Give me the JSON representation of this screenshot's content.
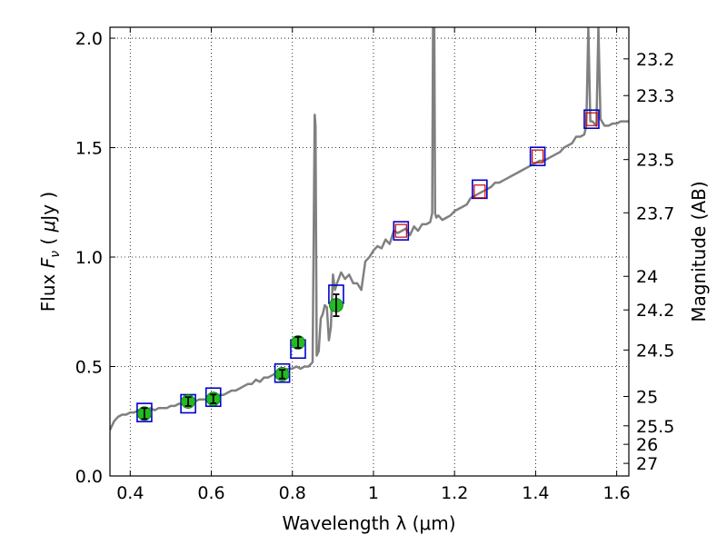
{
  "chart_data": {
    "type": "scatter",
    "xlabel": "Wavelength  λ (μm)",
    "ylabel_parts": [
      "Flux  ",
      "F",
      "ν",
      "  ( ",
      "μ",
      "Jy )"
    ],
    "y2label": "Magnitude (AB)",
    "xlim": [
      0.35,
      1.63
    ],
    "ylim": [
      0.0,
      2.05
    ],
    "grid": true,
    "x_ticks": [
      {
        "value": 0.4,
        "label": "0.4"
      },
      {
        "value": 0.6,
        "label": "0.6"
      },
      {
        "value": 0.8,
        "label": "0.8"
      },
      {
        "value": 1.0,
        "label": "1"
      },
      {
        "value": 1.2,
        "label": "1.2"
      },
      {
        "value": 1.4,
        "label": "1.4"
      },
      {
        "value": 1.6,
        "label": "1.6"
      }
    ],
    "y_ticks": [
      {
        "value": 0.0,
        "label": "0.0"
      },
      {
        "value": 0.5,
        "label": "0.5"
      },
      {
        "value": 1.0,
        "label": "1.0"
      },
      {
        "value": 1.5,
        "label": "1.5"
      },
      {
        "value": 2.0,
        "label": "2.0"
      }
    ],
    "mag_ticks": [
      {
        "value": 23.2,
        "label": "23.2"
      },
      {
        "value": 23.3,
        "label": "23.3"
      },
      {
        "value": 23.5,
        "label": "23.5"
      },
      {
        "value": 23.7,
        "label": "23.7"
      },
      {
        "value": 24,
        "label": "24"
      },
      {
        "value": 24.2,
        "label": "24.2"
      },
      {
        "value": 24.5,
        "label": "24.5"
      },
      {
        "value": 25,
        "label": "25"
      },
      {
        "value": 25.5,
        "label": "25.5"
      },
      {
        "value": 26,
        "label": "26"
      },
      {
        "value": 27,
        "label": "27"
      }
    ],
    "series": [
      {
        "name": "model-spectrum",
        "kind": "line",
        "color": "#808080",
        "x": [
          0.35,
          0.36,
          0.37,
          0.38,
          0.39,
          0.4,
          0.41,
          0.42,
          0.43,
          0.44,
          0.45,
          0.46,
          0.47,
          0.48,
          0.49,
          0.5,
          0.51,
          0.52,
          0.53,
          0.54,
          0.55,
          0.56,
          0.57,
          0.58,
          0.59,
          0.6,
          0.61,
          0.62,
          0.63,
          0.64,
          0.65,
          0.66,
          0.67,
          0.68,
          0.69,
          0.7,
          0.71,
          0.72,
          0.73,
          0.74,
          0.75,
          0.76,
          0.77,
          0.78,
          0.79,
          0.8,
          0.81,
          0.82,
          0.83,
          0.84,
          0.85,
          0.855,
          0.857,
          0.86,
          0.865,
          0.87,
          0.875,
          0.88,
          0.885,
          0.89,
          0.895,
          0.9,
          0.905,
          0.91,
          0.92,
          0.93,
          0.94,
          0.95,
          0.96,
          0.97,
          0.98,
          0.99,
          1.0,
          1.01,
          1.02,
          1.03,
          1.04,
          1.05,
          1.06,
          1.07,
          1.08,
          1.09,
          1.1,
          1.11,
          1.12,
          1.13,
          1.14,
          1.145,
          1.147,
          1.15,
          1.152,
          1.155,
          1.16,
          1.17,
          1.18,
          1.19,
          1.2,
          1.21,
          1.22,
          1.23,
          1.24,
          1.25,
          1.26,
          1.27,
          1.28,
          1.29,
          1.3,
          1.31,
          1.32,
          1.33,
          1.34,
          1.35,
          1.36,
          1.37,
          1.38,
          1.39,
          1.4,
          1.41,
          1.42,
          1.43,
          1.44,
          1.45,
          1.46,
          1.47,
          1.48,
          1.49,
          1.5,
          1.51,
          1.52,
          1.525,
          1.53,
          1.535,
          1.54,
          1.55,
          1.555,
          1.56,
          1.57,
          1.58,
          1.59,
          1.6,
          1.61,
          1.62,
          1.63
        ],
        "y": [
          0.21,
          0.25,
          0.27,
          0.28,
          0.28,
          0.29,
          0.29,
          0.3,
          0.3,
          0.3,
          0.31,
          0.3,
          0.31,
          0.31,
          0.31,
          0.32,
          0.32,
          0.33,
          0.33,
          0.34,
          0.34,
          0.34,
          0.35,
          0.35,
          0.35,
          0.36,
          0.36,
          0.37,
          0.37,
          0.38,
          0.39,
          0.39,
          0.4,
          0.41,
          0.42,
          0.42,
          0.44,
          0.43,
          0.45,
          0.45,
          0.46,
          0.47,
          0.47,
          0.48,
          0.49,
          0.49,
          0.5,
          0.49,
          0.5,
          0.5,
          0.52,
          1.65,
          1.6,
          0.55,
          0.57,
          0.72,
          0.74,
          0.78,
          0.77,
          0.62,
          0.68,
          0.92,
          0.85,
          0.88,
          0.93,
          0.9,
          0.92,
          0.88,
          0.88,
          0.85,
          0.98,
          1.0,
          1.03,
          1.05,
          1.04,
          1.08,
          1.06,
          1.12,
          1.11,
          1.12,
          1.13,
          1.1,
          1.14,
          1.12,
          1.15,
          1.15,
          1.16,
          1.2,
          2.05,
          2.05,
          1.2,
          1.18,
          1.19,
          1.17,
          1.18,
          1.19,
          1.21,
          1.22,
          1.23,
          1.24,
          1.27,
          1.28,
          1.29,
          1.3,
          1.31,
          1.32,
          1.34,
          1.34,
          1.35,
          1.36,
          1.37,
          1.38,
          1.39,
          1.4,
          1.41,
          1.42,
          1.43,
          1.44,
          1.44,
          1.45,
          1.46,
          1.47,
          1.48,
          1.5,
          1.51,
          1.52,
          1.55,
          1.55,
          1.56,
          1.6,
          2.05,
          1.62,
          1.62,
          1.6,
          2.05,
          1.63,
          1.6,
          1.6,
          1.61,
          1.61,
          1.62,
          1.62,
          1.62
        ]
      },
      {
        "name": "model-photometry",
        "kind": "open-square",
        "color": "#0000cc",
        "x": [
          0.435,
          0.543,
          0.605,
          0.775,
          0.814,
          0.908,
          1.068,
          1.262,
          1.405,
          1.538
        ],
        "y": [
          0.29,
          0.33,
          0.36,
          0.47,
          0.58,
          0.83,
          1.12,
          1.31,
          1.46,
          1.63
        ]
      },
      {
        "name": "red-squares",
        "kind": "open-square-small",
        "color": "#cc0000",
        "x": [
          1.068,
          1.262,
          1.405,
          1.538
        ],
        "y": [
          1.12,
          1.3,
          1.46,
          1.63
        ]
      },
      {
        "name": "observed-photometry",
        "kind": "filled-circle-errorbar",
        "color": "#22bb22",
        "x": [
          0.435,
          0.543,
          0.605,
          0.775,
          0.814,
          0.908
        ],
        "y": [
          0.285,
          0.34,
          0.352,
          0.465,
          0.61,
          0.78
        ],
        "yerr": [
          0.025,
          0.02,
          0.02,
          0.02,
          0.025,
          0.05
        ]
      }
    ]
  }
}
